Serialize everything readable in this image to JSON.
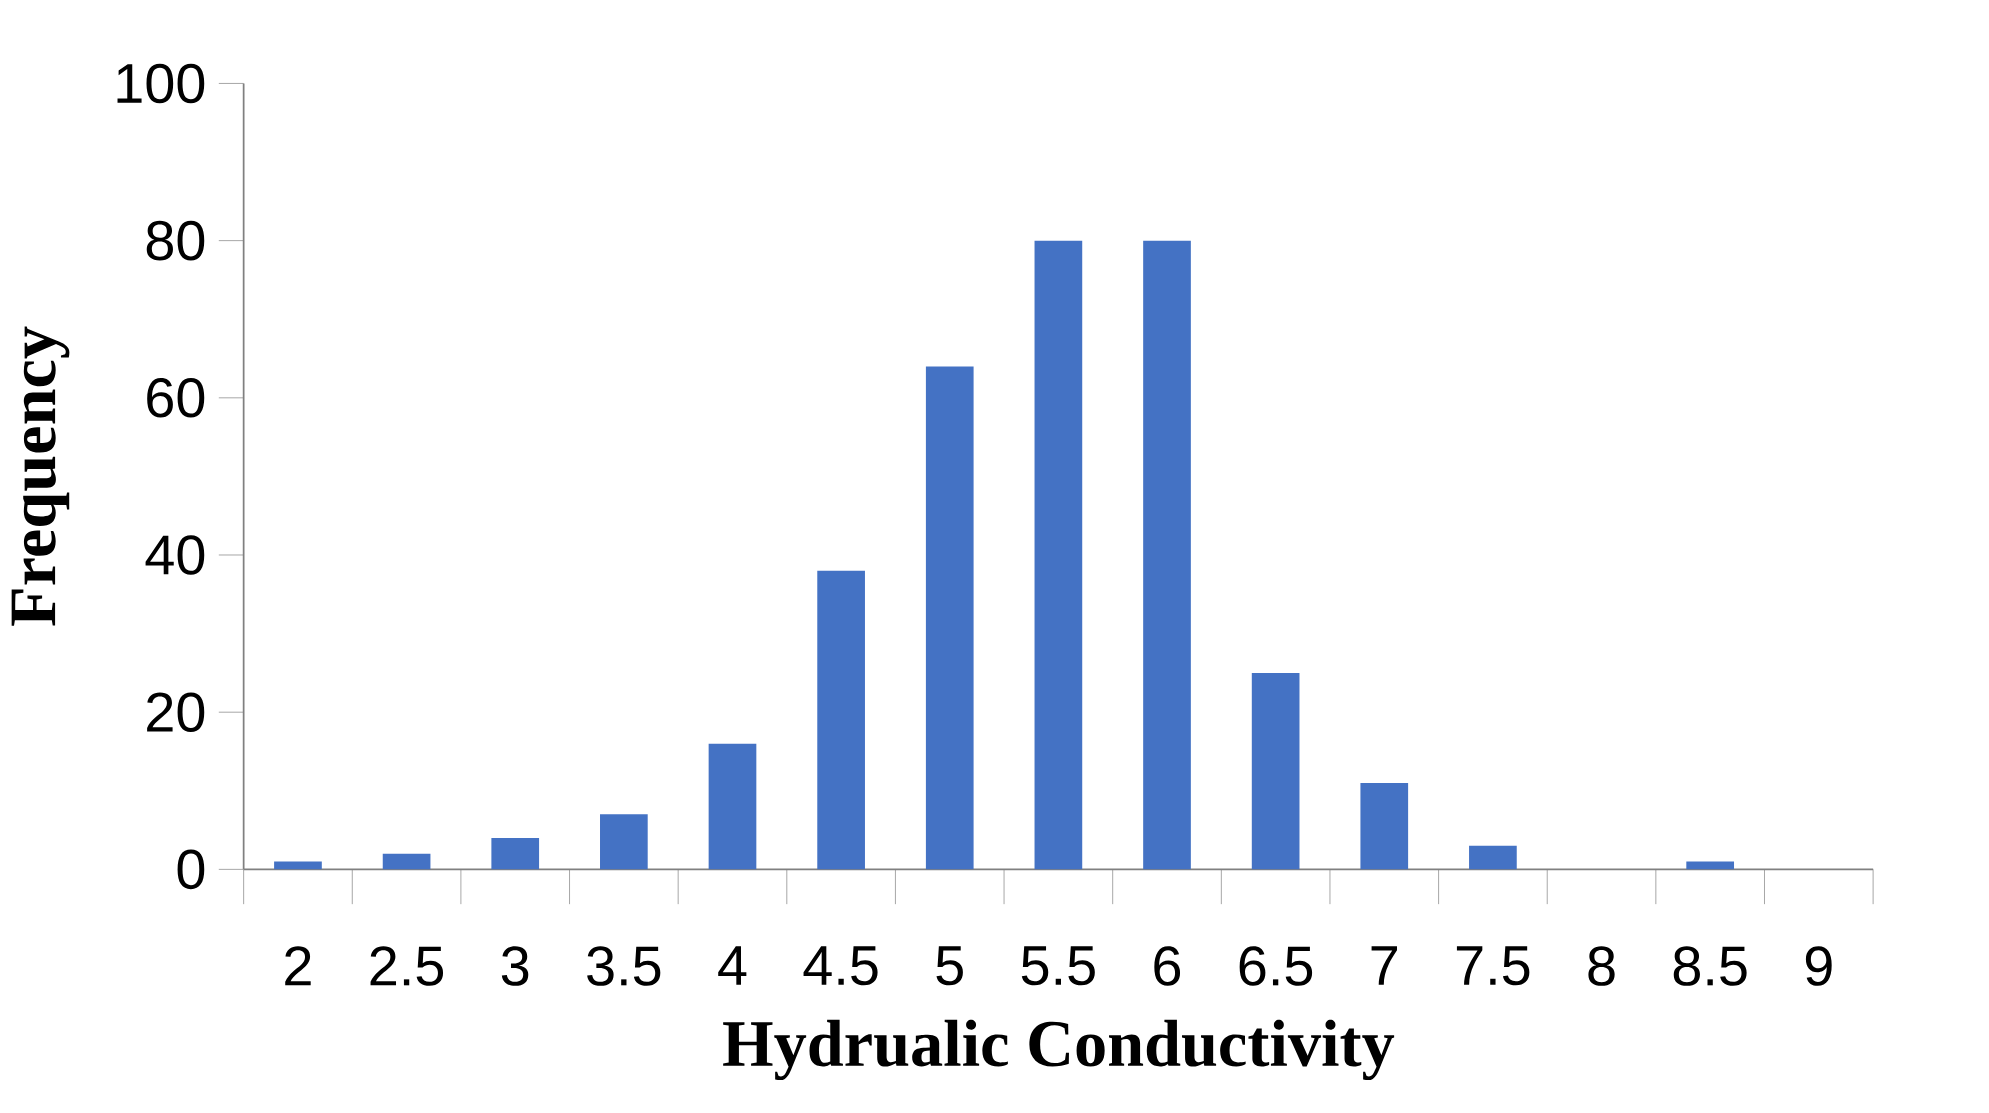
{
  "chart_data": {
    "type": "bar",
    "xlabel": "Hydrualic Conductivity",
    "ylabel": "Frequency",
    "categories": [
      "2",
      "2.5",
      "3",
      "3.5",
      "4",
      "4.5",
      "5",
      "5.5",
      "6",
      "6.5",
      "7",
      "7.5",
      "8",
      "8.5",
      "9"
    ],
    "values": [
      1,
      2,
      4,
      7,
      16,
      38,
      64,
      80,
      80,
      25,
      11,
      3,
      0,
      1,
      0
    ],
    "color": "#4472c4",
    "ylim": [
      0,
      100
    ],
    "yticks": [
      0,
      20,
      40,
      60,
      80,
      100
    ],
    "grid": false
  }
}
